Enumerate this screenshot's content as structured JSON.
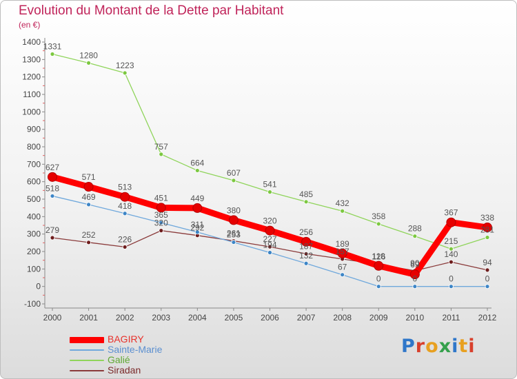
{
  "page": {
    "title": "Evolution du Montant de la Dette par Habitant",
    "subtitle": "(en €)",
    "logo": "Proxiti",
    "logo_colors": [
      "#2f77c9",
      "#d8402c",
      "#e8a020",
      "#35a04c",
      "#2f77c9",
      "#e8a020",
      "#d8402c"
    ]
  },
  "chart_data": {
    "type": "line",
    "title": "Evolution du Montant de la Dette par Habitant",
    "subtitle": "(en €)",
    "xlabel": "",
    "ylabel": "",
    "x": [
      "2000",
      "2001",
      "2002",
      "2003",
      "2004",
      "2005",
      "2006",
      "2007",
      "2008",
      "2009",
      "2010",
      "2011",
      "2012"
    ],
    "ylim": [
      -100,
      1400
    ],
    "yticks": [
      -100,
      0,
      100,
      200,
      300,
      400,
      500,
      600,
      700,
      800,
      900,
      1000,
      1100,
      1200,
      1300,
      1400
    ],
    "grid": false,
    "legend": "bottom-left",
    "series": [
      {
        "name": "Galié",
        "color": "#8fd45a",
        "marker": "#7cc840",
        "width": 1.3,
        "values": [
          1331,
          1280,
          1223,
          757,
          664,
          607,
          541,
          485,
          432,
          358,
          288,
          215,
          281
        ],
        "labels": [
          "1331",
          "1280",
          "1223",
          "757",
          "664",
          "607",
          "541",
          "485",
          "432",
          "358",
          "288",
          "215",
          "281"
        ]
      },
      {
        "name": "Siradan",
        "color": "#8a3a3a",
        "marker": "#6e1d1d",
        "width": 1.3,
        "values": [
          279,
          252,
          226,
          320,
          292,
          261,
          227,
          187,
          157,
          126,
          90,
          140,
          94
        ],
        "labels": [
          "279",
          "252",
          "226",
          "320",
          "292",
          "261",
          "227",
          "187",
          "157",
          "126",
          "90",
          "140",
          "94"
        ]
      },
      {
        "name": "Sainte-Marie",
        "color": "#6fa8dc",
        "marker": "#3d85c6",
        "width": 1.3,
        "values": [
          518,
          469,
          418,
          365,
          311,
          253,
          194,
          132,
          67,
          0,
          0,
          0,
          0
        ],
        "labels": [
          "518",
          "469",
          "418",
          "365",
          "311",
          "253",
          "194",
          "132",
          "67",
          "0",
          "0",
          "0",
          "0"
        ]
      },
      {
        "name": "BAGIRY",
        "color": "#ff0000",
        "marker": "#e60000",
        "width": 9,
        "values": [
          627,
          571,
          513,
          451,
          449,
          380,
          320,
          256,
          189,
          118,
          69,
          367,
          338
        ],
        "labels": [
          "627",
          "571",
          "513",
          "451",
          "449",
          "380",
          "320",
          "256",
          "189",
          "118",
          "69",
          "367",
          "338"
        ]
      }
    ]
  },
  "legend": [
    {
      "label": "BAGIRY",
      "color": "#ff0000",
      "text_color": "#e8302a",
      "thickness": 9
    },
    {
      "label": "Sainte-Marie",
      "color": "#6fa8dc",
      "text_color": "#5b8fd0",
      "thickness": 2
    },
    {
      "label": "Galié",
      "color": "#8fd45a",
      "text_color": "#5fa832",
      "thickness": 2
    },
    {
      "label": "Siradan",
      "color": "#8a3a3a",
      "text_color": "#7a2a2a",
      "thickness": 2
    }
  ]
}
